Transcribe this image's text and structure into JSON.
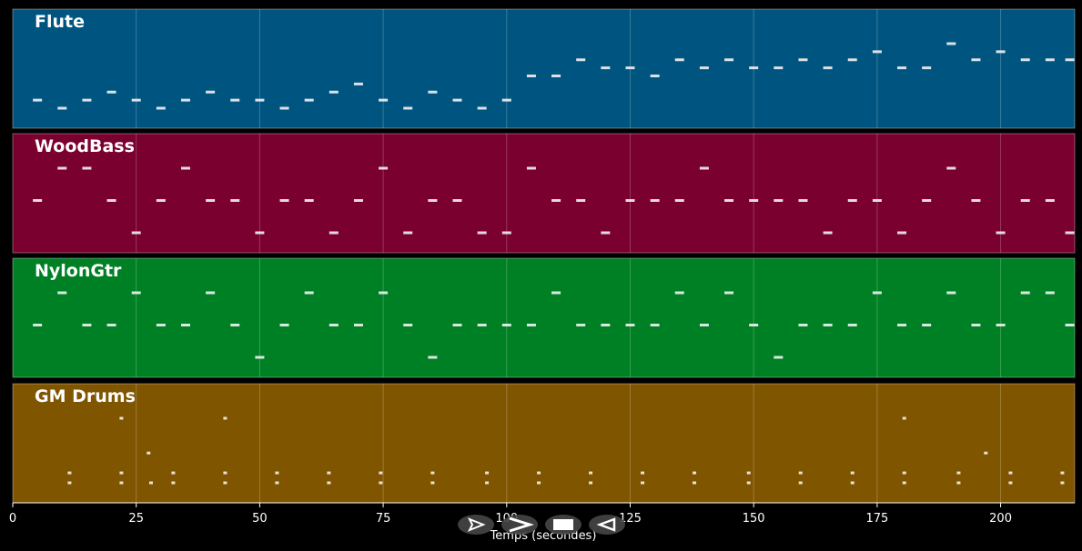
{
  "chart_data": {
    "type": "scatter",
    "title": "",
    "xlabel": "Temps (secondes)",
    "ylabel": "",
    "xlim": [
      0,
      215
    ],
    "xticks": [
      0,
      25,
      50,
      75,
      100,
      125,
      150,
      175,
      200
    ],
    "grid": true,
    "tracks": [
      {
        "name": "Flute",
        "color": "#005580",
        "notes": [
          [
            5,
            75
          ],
          [
            10,
            74
          ],
          [
            15,
            75
          ],
          [
            20,
            76
          ],
          [
            25,
            75
          ],
          [
            30,
            74
          ],
          [
            35,
            75
          ],
          [
            40,
            76
          ],
          [
            45,
            75
          ],
          [
            50,
            75
          ],
          [
            55,
            74
          ],
          [
            60,
            75
          ],
          [
            65,
            76
          ],
          [
            70,
            77
          ],
          [
            75,
            75
          ],
          [
            80,
            74
          ],
          [
            85,
            76
          ],
          [
            90,
            75
          ],
          [
            95,
            74
          ],
          [
            100,
            75
          ],
          [
            105,
            78
          ],
          [
            110,
            78
          ],
          [
            115,
            80
          ],
          [
            120,
            79
          ],
          [
            125,
            79
          ],
          [
            130,
            78
          ],
          [
            135,
            80
          ],
          [
            140,
            79
          ],
          [
            145,
            80
          ],
          [
            150,
            79
          ],
          [
            155,
            79
          ],
          [
            160,
            80
          ],
          [
            165,
            79
          ],
          [
            170,
            80
          ],
          [
            175,
            81
          ],
          [
            180,
            79
          ],
          [
            185,
            79
          ],
          [
            190,
            82
          ],
          [
            195,
            80
          ],
          [
            200,
            81
          ],
          [
            205,
            80
          ],
          [
            210,
            80
          ],
          [
            214,
            80
          ]
        ]
      },
      {
        "name": "WoodBass",
        "color": "#7a0030",
        "notes": [
          [
            5,
            44
          ],
          [
            10,
            45
          ],
          [
            15,
            45
          ],
          [
            20,
            44
          ],
          [
            25,
            43
          ],
          [
            30,
            44
          ],
          [
            35,
            45
          ],
          [
            40,
            44
          ],
          [
            45,
            44
          ],
          [
            50,
            43
          ],
          [
            55,
            44
          ],
          [
            60,
            44
          ],
          [
            65,
            43
          ],
          [
            70,
            44
          ],
          [
            75,
            45
          ],
          [
            80,
            43
          ],
          [
            85,
            44
          ],
          [
            90,
            44
          ],
          [
            95,
            43
          ],
          [
            100,
            43
          ],
          [
            105,
            45
          ],
          [
            110,
            44
          ],
          [
            115,
            44
          ],
          [
            120,
            43
          ],
          [
            125,
            44
          ],
          [
            130,
            44
          ],
          [
            135,
            44
          ],
          [
            140,
            45
          ],
          [
            145,
            44
          ],
          [
            150,
            44
          ],
          [
            155,
            44
          ],
          [
            160,
            44
          ],
          [
            165,
            43
          ],
          [
            170,
            44
          ],
          [
            175,
            44
          ],
          [
            180,
            43
          ],
          [
            185,
            44
          ],
          [
            190,
            45
          ],
          [
            195,
            44
          ],
          [
            200,
            43
          ],
          [
            205,
            44
          ],
          [
            210,
            44
          ],
          [
            214,
            43
          ]
        ]
      },
      {
        "name": "NylonGtr",
        "color": "#008024",
        "notes": [
          [
            5,
            60
          ],
          [
            10,
            61
          ],
          [
            15,
            60
          ],
          [
            20,
            60
          ],
          [
            25,
            61
          ],
          [
            30,
            60
          ],
          [
            35,
            60
          ],
          [
            40,
            61
          ],
          [
            45,
            60
          ],
          [
            50,
            59
          ],
          [
            55,
            60
          ],
          [
            60,
            61
          ],
          [
            65,
            60
          ],
          [
            70,
            60
          ],
          [
            75,
            61
          ],
          [
            80,
            60
          ],
          [
            85,
            59
          ],
          [
            90,
            60
          ],
          [
            95,
            60
          ],
          [
            100,
            60
          ],
          [
            105,
            60
          ],
          [
            110,
            61
          ],
          [
            115,
            60
          ],
          [
            120,
            60
          ],
          [
            125,
            60
          ],
          [
            130,
            60
          ],
          [
            135,
            61
          ],
          [
            140,
            60
          ],
          [
            145,
            61
          ],
          [
            150,
            60
          ],
          [
            155,
            59
          ],
          [
            160,
            60
          ],
          [
            165,
            60
          ],
          [
            170,
            60
          ],
          [
            175,
            61
          ],
          [
            180,
            60
          ],
          [
            185,
            60
          ],
          [
            190,
            61
          ],
          [
            195,
            60
          ],
          [
            200,
            60
          ],
          [
            205,
            61
          ],
          [
            210,
            61
          ],
          [
            214,
            60
          ]
        ]
      },
      {
        "name": "GM Drums",
        "color": "#805500",
        "notes": [
          [
            11.5,
            38
          ],
          [
            11.5,
            36
          ],
          [
            22,
            38
          ],
          [
            22,
            36
          ],
          [
            22,
            49
          ],
          [
            27.5,
            42
          ],
          [
            28,
            36
          ],
          [
            32.5,
            38
          ],
          [
            32.5,
            36
          ],
          [
            43,
            38
          ],
          [
            43,
            36
          ],
          [
            43,
            49
          ],
          [
            53.5,
            38
          ],
          [
            53.5,
            36
          ],
          [
            64,
            38
          ],
          [
            64,
            36
          ],
          [
            74.5,
            38
          ],
          [
            74.5,
            36
          ],
          [
            85,
            38
          ],
          [
            85,
            36
          ],
          [
            96,
            38
          ],
          [
            96,
            36
          ],
          [
            106.5,
            38
          ],
          [
            106.5,
            36
          ],
          [
            117,
            38
          ],
          [
            117,
            36
          ],
          [
            127.5,
            38
          ],
          [
            127.5,
            36
          ],
          [
            138,
            38
          ],
          [
            138,
            36
          ],
          [
            149,
            38
          ],
          [
            149,
            36
          ],
          [
            159.5,
            38
          ],
          [
            159.5,
            36
          ],
          [
            170,
            38
          ],
          [
            170,
            36
          ],
          [
            180.5,
            38
          ],
          [
            180.5,
            36
          ],
          [
            180.5,
            49
          ],
          [
            191.5,
            38
          ],
          [
            191.5,
            36
          ],
          [
            197,
            42
          ],
          [
            202,
            38
          ],
          [
            202,
            36
          ],
          [
            212.5,
            38
          ],
          [
            212.5,
            36
          ]
        ]
      }
    ]
  },
  "controls": {
    "items": [
      {
        "id": "rewind",
        "icon": "rewind-icon"
      },
      {
        "id": "play",
        "icon": "play-icon"
      },
      {
        "id": "stop",
        "icon": "stop-icon"
      },
      {
        "id": "back",
        "icon": "back-icon"
      }
    ]
  }
}
